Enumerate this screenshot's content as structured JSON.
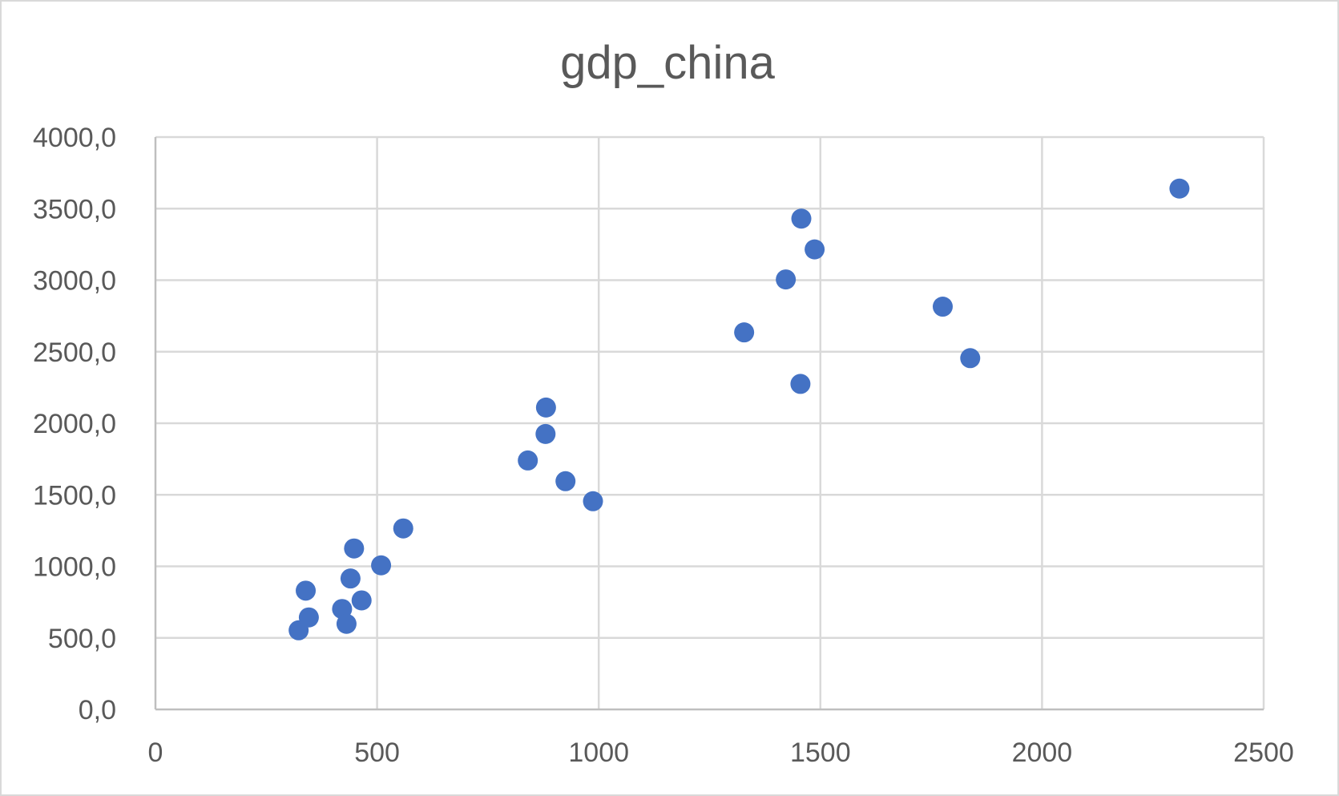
{
  "chart_data": {
    "type": "scatter",
    "title": "gdp_china",
    "xlabel": "",
    "ylabel": "",
    "xlim": [
      0,
      2500
    ],
    "ylim": [
      0,
      4000
    ],
    "x_ticks": [
      "0",
      "500",
      "1000",
      "1500",
      "2000",
      "2500"
    ],
    "x_tick_values": [
      0,
      500,
      1000,
      1500,
      2000,
      2500
    ],
    "y_ticks": [
      "0,0",
      "500,0",
      "1000,0",
      "1500,0",
      "2000,0",
      "2500,0",
      "3000,0",
      "3500,0",
      "4000,0"
    ],
    "y_tick_values": [
      0,
      500,
      1000,
      1500,
      2000,
      2500,
      3000,
      3500,
      4000
    ],
    "grid": true,
    "legend": "none",
    "marker_color": "#4472c4",
    "series": [
      {
        "points": [
          {
            "x": 323,
            "y": 553
          },
          {
            "x": 346,
            "y": 643
          },
          {
            "x": 339,
            "y": 830
          },
          {
            "x": 421,
            "y": 702
          },
          {
            "x": 431,
            "y": 598
          },
          {
            "x": 440,
            "y": 915
          },
          {
            "x": 448,
            "y": 1125
          },
          {
            "x": 465,
            "y": 762
          },
          {
            "x": 509,
            "y": 1007
          },
          {
            "x": 559,
            "y": 1265
          },
          {
            "x": 840,
            "y": 1740
          },
          {
            "x": 880,
            "y": 1925
          },
          {
            "x": 881,
            "y": 2110
          },
          {
            "x": 925,
            "y": 1595
          },
          {
            "x": 987,
            "y": 1455
          },
          {
            "x": 1328,
            "y": 2635
          },
          {
            "x": 1422,
            "y": 3005
          },
          {
            "x": 1455,
            "y": 2275
          },
          {
            "x": 1457,
            "y": 3430
          },
          {
            "x": 1487,
            "y": 3215
          },
          {
            "x": 1776,
            "y": 2815
          },
          {
            "x": 1838,
            "y": 2455
          },
          {
            "x": 2310,
            "y": 3640
          }
        ]
      }
    ]
  }
}
